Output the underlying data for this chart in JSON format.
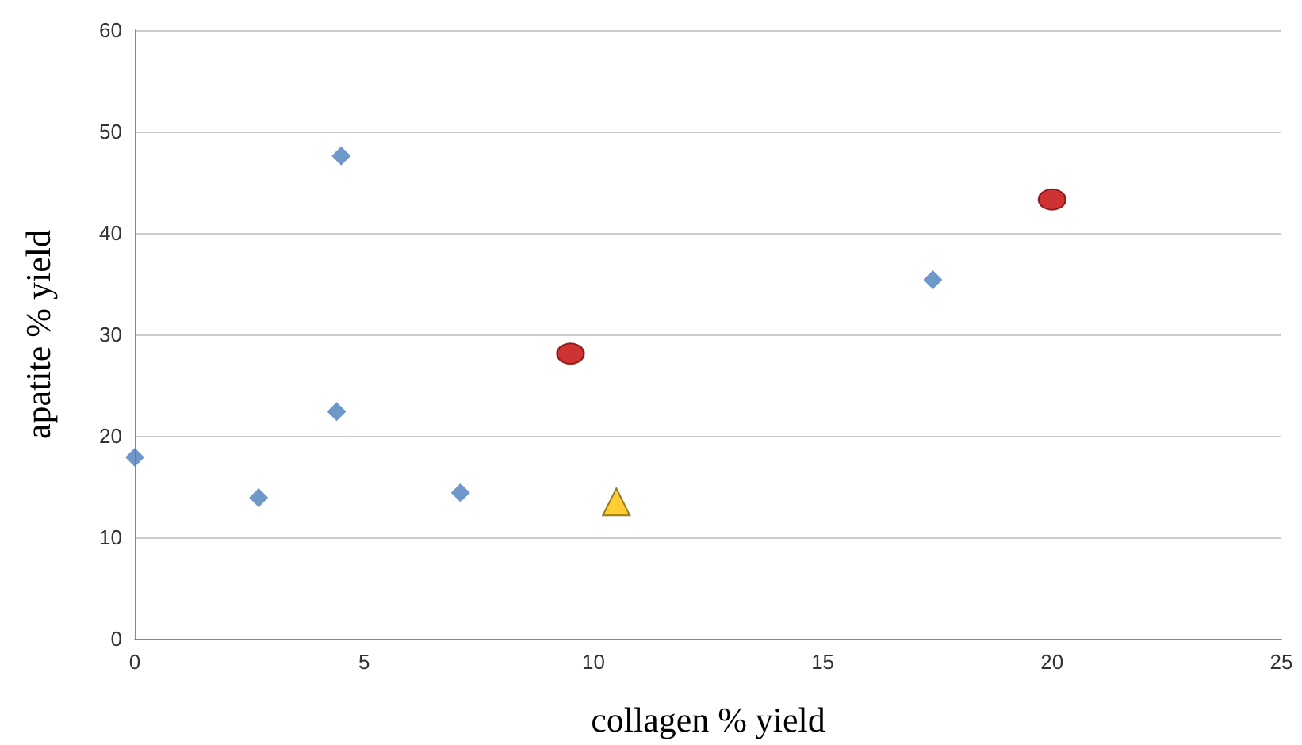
{
  "chart_data": {
    "type": "scatter",
    "xlabel": "collagen % yield",
    "ylabel": "apatite % yield",
    "xlim": [
      0,
      25
    ],
    "xticks": [
      0,
      5,
      10,
      15,
      20,
      25
    ],
    "ylim": [
      0,
      60
    ],
    "yticks": [
      0,
      10,
      20,
      30,
      40,
      50,
      60
    ],
    "grid": "y",
    "series": [
      {
        "color": "#4a7ebb",
        "marker": "diamond",
        "x": [
          0,
          2.7,
          4.4,
          4.5,
          7.1,
          17.4
        ],
        "values": [
          17.9,
          13.9,
          22.4,
          47.6,
          14.4,
          35.4
        ]
      },
      {
        "color": "#c00000",
        "marker": "circle",
        "x": [
          9.5,
          20
        ],
        "values": [
          28.1,
          43.3
        ]
      },
      {
        "color": "#ffc000",
        "marker": "triangle",
        "x": [
          10.5
        ],
        "values": [
          13.5
        ]
      }
    ]
  }
}
